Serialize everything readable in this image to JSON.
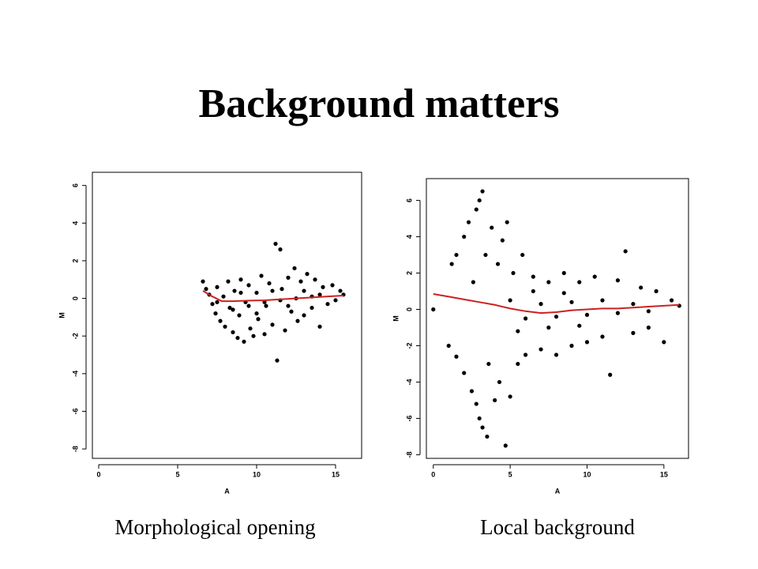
{
  "title": "Background matters",
  "chart_data": [
    {
      "type": "scatter",
      "caption": "Morphological opening",
      "xlabel": "A",
      "ylabel": "M",
      "xlim": [
        -0.4,
        16.65
      ],
      "ylim": [
        -8.5,
        6.7
      ],
      "xticks": [
        0,
        5,
        10,
        15
      ],
      "yticks": [
        -8,
        -6,
        -4,
        -2,
        0,
        2,
        4,
        6
      ],
      "color": "#000000",
      "x": [
        6.6,
        6.8,
        7.0,
        7.2,
        7.4,
        7.5,
        7.7,
        7.9,
        8.0,
        8.2,
        8.3,
        8.5,
        8.6,
        8.8,
        8.9,
        9.0,
        9.2,
        9.3,
        9.5,
        9.6,
        9.8,
        10.0,
        10.1,
        10.3,
        10.5,
        10.6,
        10.8,
        11.0,
        11.2,
        11.3,
        11.5,
        11.6,
        11.8,
        12.0,
        12.2,
        12.4,
        12.6,
        12.8,
        13.0,
        13.2,
        13.5,
        13.7,
        14.0,
        14.2,
        14.5,
        14.8,
        15.0,
        15.3,
        15.5,
        7.5,
        8.5,
        9.5,
        10.5,
        11.5,
        12.5,
        13.5,
        9.0,
        10.0,
        11.0,
        12.0,
        13.0,
        14.0
      ],
      "values": [
        0.9,
        0.5,
        0.2,
        -0.3,
        -0.8,
        0.6,
        -1.2,
        0.1,
        -1.5,
        0.9,
        -0.5,
        -1.8,
        0.4,
        -2.1,
        -0.9,
        1.0,
        -2.3,
        -0.2,
        0.7,
        -1.6,
        -2.0,
        0.3,
        -1.1,
        1.2,
        -1.9,
        -0.4,
        0.8,
        -1.4,
        2.9,
        -3.3,
        2.6,
        0.5,
        -1.7,
        1.1,
        -0.7,
        1.6,
        -1.2,
        0.9,
        -0.9,
        1.3,
        -0.5,
        1.0,
        -1.5,
        0.6,
        -0.3,
        0.7,
        -0.1,
        0.4,
        0.2,
        -0.2,
        -0.6,
        -0.4,
        -0.2,
        -0.1,
        0.0,
        0.1,
        0.3,
        -0.8,
        0.4,
        -0.4,
        0.4,
        0.2
      ],
      "smooth": {
        "color": "#cc2222",
        "x": [
          6.6,
          7.2,
          7.8,
          8.5,
          9.5,
          10.5,
          11.5,
          12.5,
          13.5,
          14.5,
          15.5
        ],
        "values": [
          0.4,
          0.1,
          -0.15,
          -0.15,
          -0.12,
          -0.1,
          -0.05,
          0.0,
          0.05,
          0.1,
          0.15
        ]
      }
    },
    {
      "type": "scatter",
      "caption": "Local background",
      "xlabel": "A",
      "ylabel": "M",
      "xlim": [
        -0.45,
        16.6
      ],
      "ylim": [
        -8.2,
        7.2
      ],
      "xticks": [
        0,
        5,
        10,
        15
      ],
      "yticks": [
        -8,
        -6,
        -4,
        -2,
        0,
        2,
        4,
        6
      ],
      "color": "#000000",
      "x": [
        0.0,
        1.0,
        1.2,
        1.5,
        1.5,
        2.0,
        2.0,
        2.3,
        2.5,
        2.6,
        2.8,
        2.8,
        3.0,
        3.0,
        3.2,
        3.2,
        3.4,
        3.5,
        3.6,
        3.8,
        4.0,
        4.2,
        4.3,
        4.5,
        4.7,
        4.8,
        5.0,
        5.2,
        5.5,
        5.8,
        6.0,
        6.5,
        7.0,
        7.5,
        8.0,
        8.5,
        9.0,
        9.5,
        10.0,
        10.5,
        11.0,
        11.5,
        12.0,
        12.5,
        13.0,
        13.5,
        14.0,
        14.5,
        15.0,
        15.5,
        16.0,
        5.0,
        6.0,
        7.0,
        8.0,
        9.0,
        10.0,
        11.0,
        12.0,
        13.0,
        14.0,
        5.5,
        7.5,
        9.5,
        6.5,
        8.5
      ],
      "values": [
        0.0,
        -2.0,
        2.5,
        3.0,
        -2.6,
        4.0,
        -3.5,
        4.8,
        -4.5,
        1.5,
        5.5,
        -5.2,
        6.0,
        -6.0,
        6.5,
        -6.5,
        3.0,
        -7.0,
        -3.0,
        4.5,
        -5.0,
        2.5,
        -4.0,
        3.8,
        -7.5,
        4.8,
        -4.8,
        2.0,
        -3.0,
        3.0,
        -2.5,
        1.8,
        -2.2,
        1.5,
        -2.5,
        2.0,
        -2.0,
        1.5,
        -1.8,
        1.8,
        -1.5,
        -3.6,
        1.6,
        3.2,
        -1.3,
        1.2,
        -1.0,
        1.0,
        -1.8,
        0.5,
        0.2,
        0.5,
        -0.5,
        0.3,
        -0.4,
        0.4,
        -0.3,
        0.5,
        -0.2,
        0.3,
        -0.1,
        -1.2,
        -1.0,
        -0.9,
        1.0,
        0.9
      ],
      "smooth": {
        "color": "#cc2222",
        "x": [
          0,
          1,
          2,
          3,
          4,
          5,
          6,
          7,
          8,
          9,
          10,
          11,
          12,
          13,
          14,
          15,
          16
        ],
        "values": [
          0.85,
          0.7,
          0.55,
          0.4,
          0.25,
          0.05,
          -0.1,
          -0.2,
          -0.15,
          -0.05,
          0.0,
          0.05,
          0.05,
          0.1,
          0.15,
          0.2,
          0.25
        ]
      }
    }
  ]
}
